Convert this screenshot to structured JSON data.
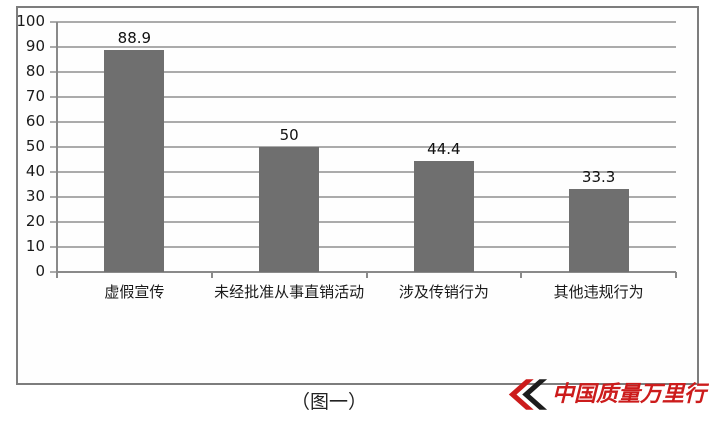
{
  "chart_data": {
    "type": "bar",
    "categories": [
      "虚假宣传",
      "未经批准从事直销活动",
      "涉及传销行为",
      "其他违规行为"
    ],
    "values": [
      88.9,
      50,
      44.4,
      33.3
    ],
    "value_labels": [
      "88.9",
      "50",
      "44.4",
      "33.3"
    ],
    "title": "",
    "xlabel": "",
    "ylabel": "",
    "ylim": [
      0,
      100
    ],
    "ytick_step": 10,
    "ytick_labels": [
      "0",
      "10",
      "20",
      "30",
      "40",
      "50",
      "60",
      "70",
      "80",
      "90",
      "100"
    ],
    "grid": "horizontal",
    "legend": "none",
    "bar_color": "#6f6f6f"
  },
  "caption": "（图一）",
  "logo": {
    "text": "中国质量万里行",
    "color": "#cc1c1c",
    "mark": "red-black-double-chevron"
  },
  "colors": {
    "bar": "#6f6f6f",
    "grid": "#ababab",
    "axis": "#8a8a8a",
    "frame": "#7d7d7d",
    "text": "#1a1a1a",
    "logo_red": "#cc1c1c",
    "logo_black": "#1c1c1c",
    "background": "#ffffff"
  }
}
